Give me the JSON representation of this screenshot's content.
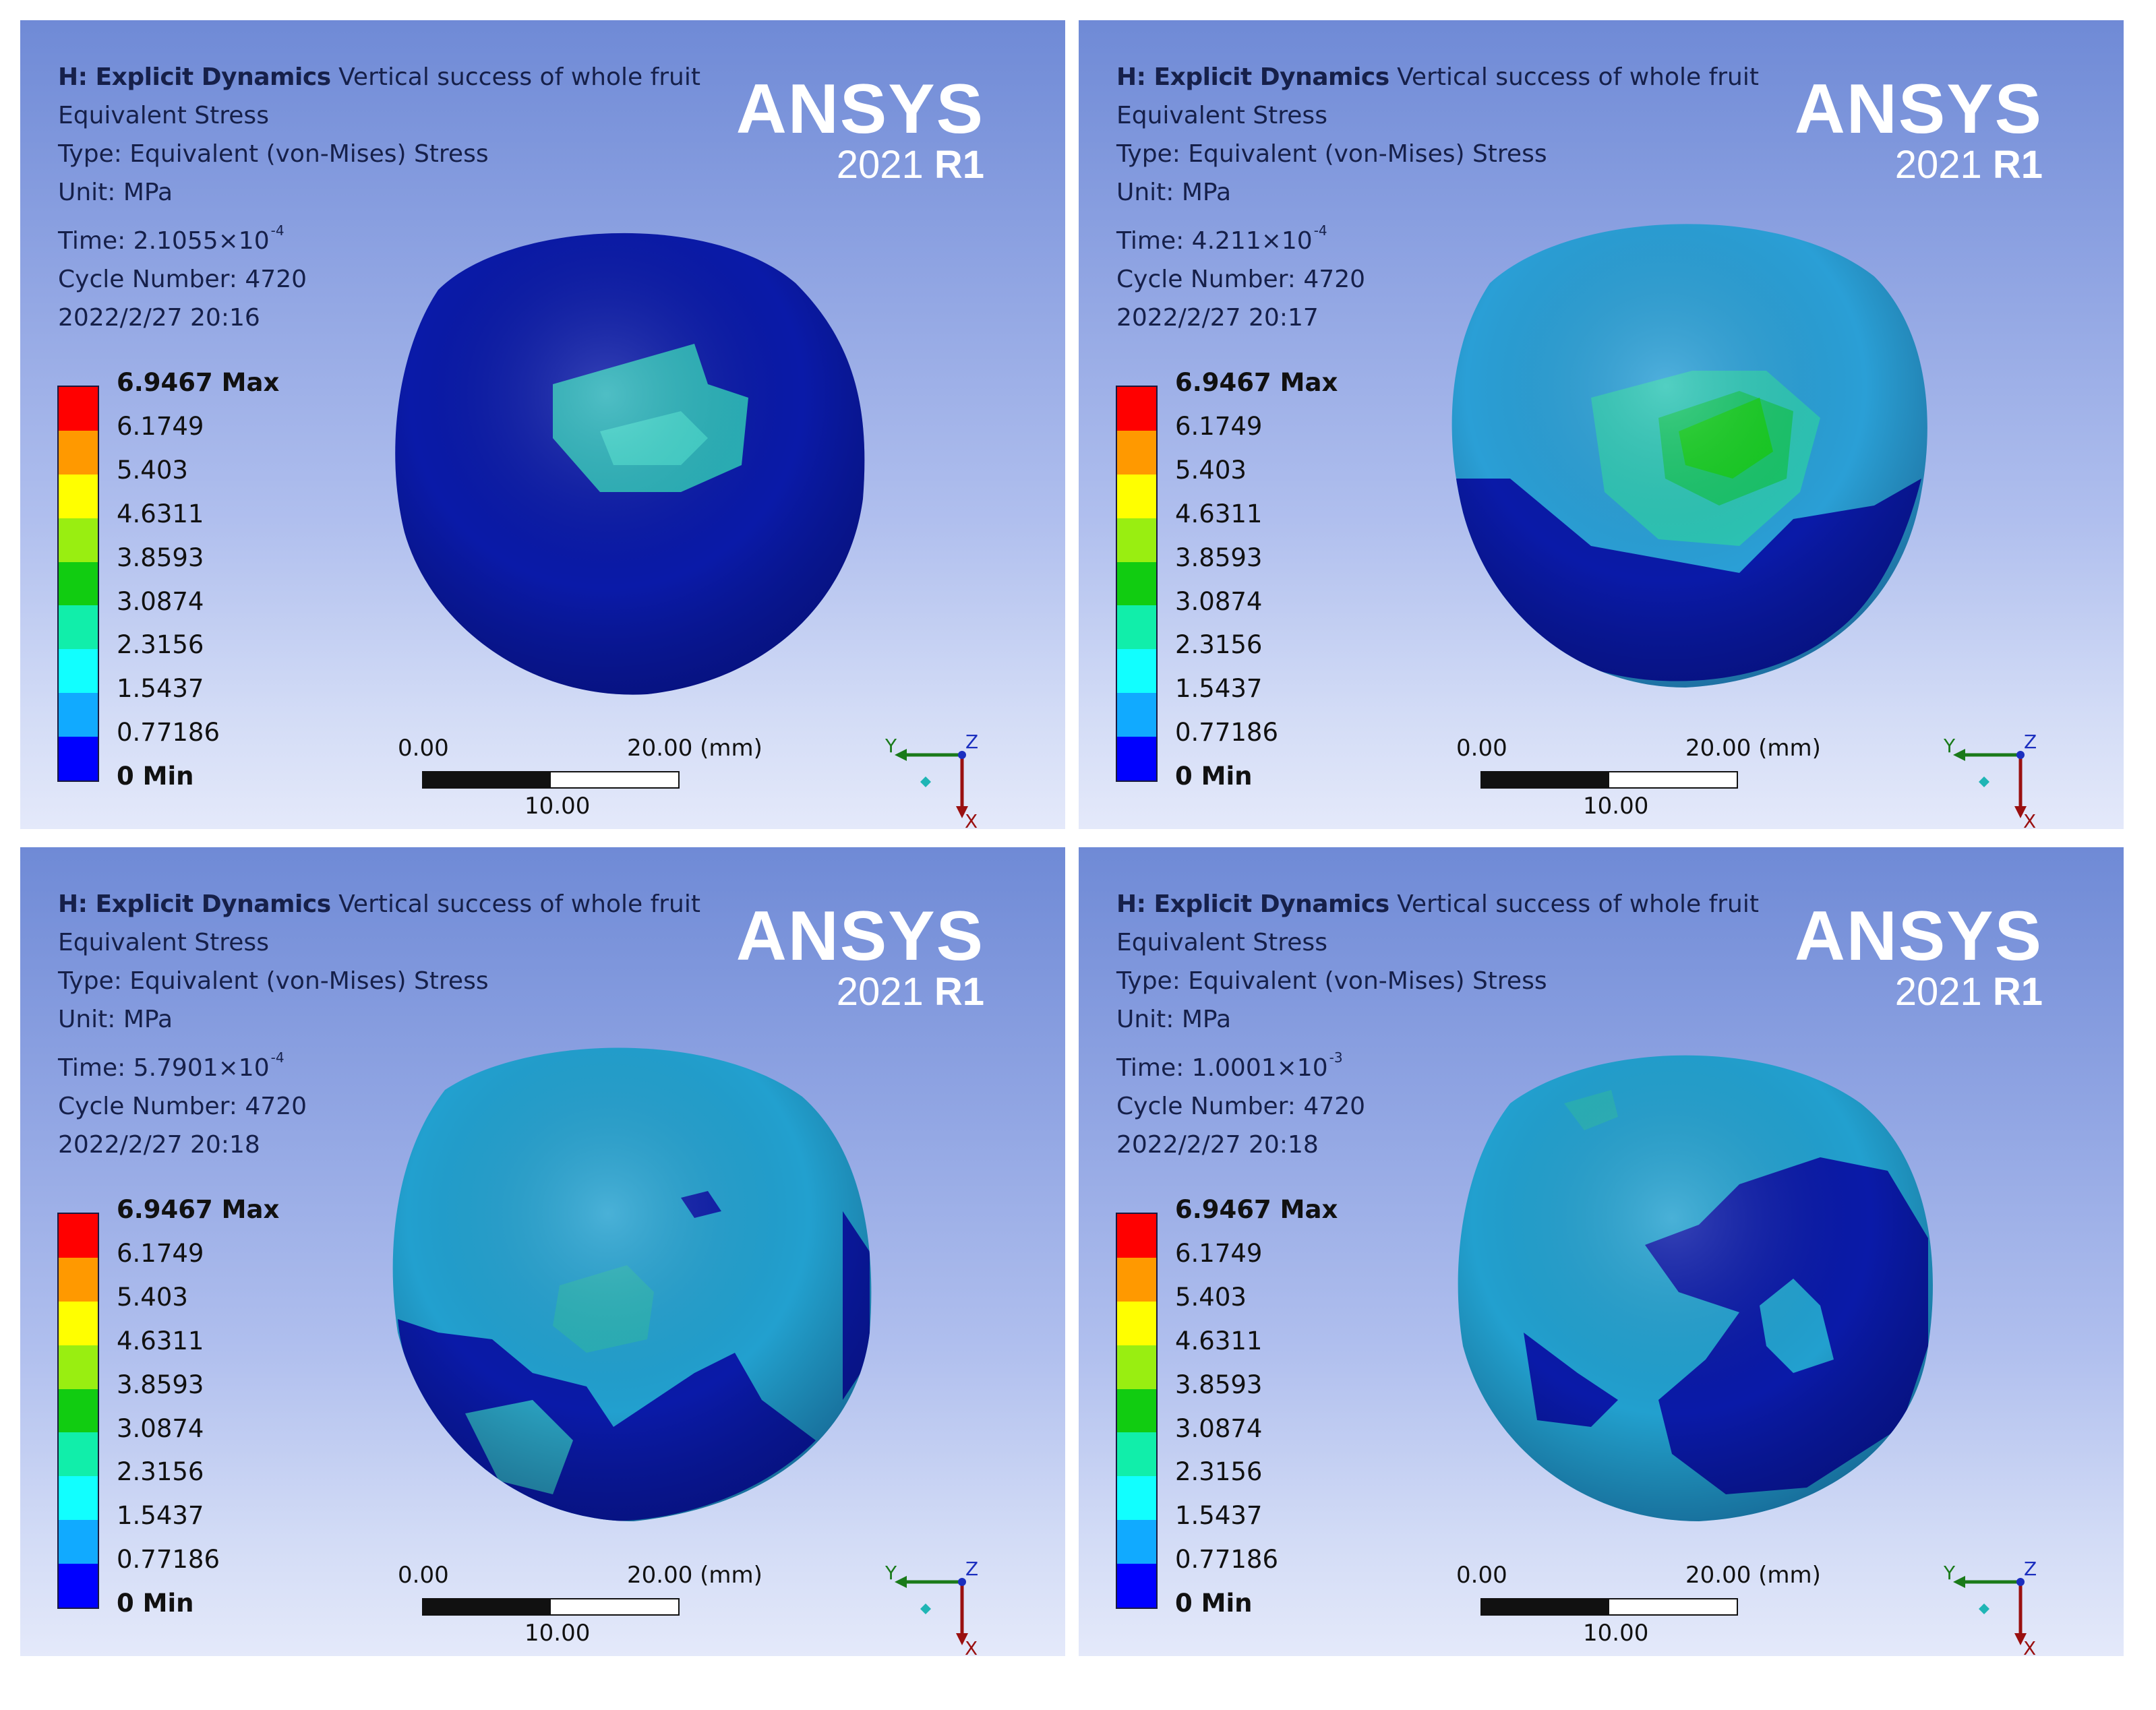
{
  "colors": {
    "legend": [
      "#ff0000",
      "#ff9900",
      "#ffff00",
      "#99ee11",
      "#11cc11",
      "#11eeaa",
      "#11ffff",
      "#11aaff",
      "#0000ff"
    ],
    "fruit_dark": "#0a1aa8",
    "fruit_light": "#2a9fd6",
    "contour_teal": "#28b0b8",
    "contour_green": "#14cc20",
    "logo": "#ffffff"
  },
  "panels": [
    {
      "title_bold": "H: Explicit Dynamics",
      "title_rest": "Vertical success of whole fruit",
      "result": "Equivalent Stress",
      "type": "Type: Equivalent (von-Mises) Stress",
      "unit": "Unit: MPa",
      "time": "Time: 2.1055×10",
      "time_exp": "-4",
      "cycle": "Cycle Number: 4720",
      "date": "2022/2/27 20:16",
      "logo_main": "ANSYS",
      "logo_year": "2021",
      "logo_rel": "R1",
      "legend_labels": [
        "6.9467 Max",
        "6.1749",
        "5.403",
        "4.6311",
        "3.8593",
        "3.0874",
        "2.3156",
        "1.5437",
        "0.77186",
        "0 Min"
      ],
      "scale_left": "0.00",
      "scale_right": "20.00 (mm)",
      "scale_mid": "10.00",
      "axis_y": "Y",
      "axis_z": "Z",
      "axis_x": "X"
    },
    {
      "title_bold": "H: Explicit Dynamics",
      "title_rest": "Vertical success of whole fruit",
      "result": "Equivalent Stress",
      "type": "Type: Equivalent (von-Mises) Stress",
      "unit": "Unit: MPa",
      "time": "Time: 4.211×10",
      "time_exp": "-4",
      "cycle": "Cycle Number: 4720",
      "date": "2022/2/27 20:17",
      "logo_main": "ANSYS",
      "logo_year": "2021",
      "logo_rel": "R1",
      "legend_labels": [
        "6.9467 Max",
        "6.1749",
        "5.403",
        "4.6311",
        "3.8593",
        "3.0874",
        "2.3156",
        "1.5437",
        "0.77186",
        "0 Min"
      ],
      "scale_left": "0.00",
      "scale_right": "20.00 (mm)",
      "scale_mid": "10.00",
      "axis_y": "Y",
      "axis_z": "Z",
      "axis_x": "X"
    },
    {
      "title_bold": "H: Explicit Dynamics",
      "title_rest": "Vertical success of whole fruit",
      "result": "Equivalent Stress",
      "type": "Type: Equivalent (von-Mises) Stress",
      "unit": "Unit: MPa",
      "time": "Time: 5.7901×10",
      "time_exp": "-4",
      "cycle": "Cycle Number: 4720",
      "date": "2022/2/27 20:18",
      "logo_main": "ANSYS",
      "logo_year": "2021",
      "logo_rel": "R1",
      "legend_labels": [
        "6.9467 Max",
        "6.1749",
        "5.403",
        "4.6311",
        "3.8593",
        "3.0874",
        "2.3156",
        "1.5437",
        "0.77186",
        "0 Min"
      ],
      "scale_left": "0.00",
      "scale_right": "20.00 (mm)",
      "scale_mid": "10.00",
      "axis_y": "Y",
      "axis_z": "Z",
      "axis_x": "X"
    },
    {
      "title_bold": "H: Explicit Dynamics",
      "title_rest": "Vertical success of whole fruit",
      "result": "Equivalent Stress",
      "type": "Type: Equivalent (von-Mises) Stress",
      "unit": "Unit: MPa",
      "time": "Time: 1.0001×10",
      "time_exp": "-3",
      "cycle": "Cycle Number: 4720",
      "date": "2022/2/27 20:18",
      "logo_main": "ANSYS",
      "logo_year": "2021",
      "logo_rel": "R1",
      "legend_labels": [
        "6.9467 Max",
        "6.1749",
        "5.403",
        "4.6311",
        "3.8593",
        "3.0874",
        "2.3156",
        "1.5437",
        "0.77186",
        "0 Min"
      ],
      "scale_left": "0.00",
      "scale_right": "20.00 (mm)",
      "scale_mid": "10.00",
      "axis_y": "Y",
      "axis_z": "Z",
      "axis_x": "X"
    }
  ]
}
